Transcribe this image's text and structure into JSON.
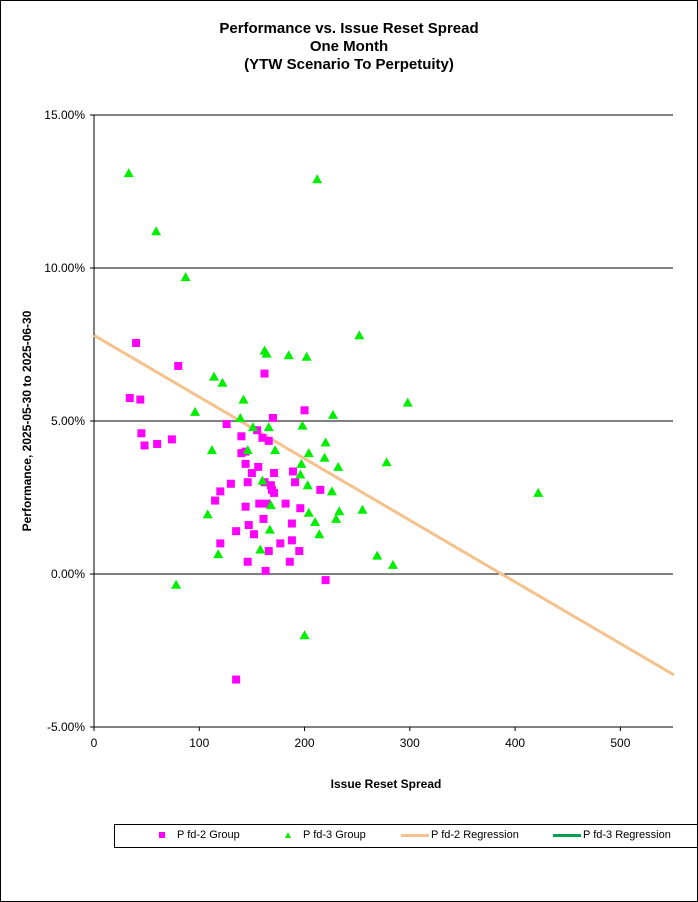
{
  "chart_data": {
    "type": "scatter",
    "title": [
      "Performance vs. Issue Reset Spread",
      "One Month",
      "(YTW Scenario To Perpetuity)"
    ],
    "xlabel": "Issue Reset Spread",
    "ylabel": "Performance, 2025-05-30  to 2025-06-30",
    "xlim": [
      0,
      550
    ],
    "ylim": [
      -5,
      15
    ],
    "x_ticks": [
      "0",
      "100",
      "200",
      "300",
      "400",
      "500"
    ],
    "y_ticks": [
      "-5.00%",
      "0.00%",
      "5.00%",
      "10.00%",
      "15.00%"
    ],
    "grid": "horizontal major",
    "legend_position": "bottom",
    "colors": {
      "pfd2": "#FF00FF",
      "pfd3": "#00EE00",
      "pfd2_reg": "#F5C28E",
      "pfd3_reg": "#00A050"
    },
    "series": [
      {
        "name": "P fd-2 Group",
        "marker": "square",
        "points": [
          [
            34,
            5.75
          ],
          [
            40,
            7.55
          ],
          [
            45,
            4.6
          ],
          [
            44,
            5.7
          ],
          [
            48,
            4.2
          ],
          [
            60,
            4.25
          ],
          [
            74,
            4.4
          ],
          [
            80,
            6.8
          ],
          [
            115,
            2.4
          ],
          [
            120,
            2.7
          ],
          [
            120,
            1.0
          ],
          [
            126,
            4.9
          ],
          [
            130,
            2.95
          ],
          [
            135,
            1.4
          ],
          [
            140,
            4.5
          ],
          [
            140,
            3.95
          ],
          [
            144,
            4.0
          ],
          [
            144,
            3.6
          ],
          [
            146,
            3.0
          ],
          [
            144,
            2.2
          ],
          [
            146,
            0.4
          ],
          [
            147,
            1.6
          ],
          [
            150,
            3.3
          ],
          [
            152,
            1.3
          ],
          [
            155,
            4.7
          ],
          [
            156,
            3.5
          ],
          [
            157,
            2.3
          ],
          [
            160,
            4.45
          ],
          [
            161,
            1.8
          ],
          [
            162,
            6.55
          ],
          [
            162,
            3.0
          ],
          [
            163,
            0.1
          ],
          [
            164,
            2.3
          ],
          [
            166,
            4.35
          ],
          [
            166,
            0.75
          ],
          [
            168,
            2.9
          ],
          [
            169,
            2.75
          ],
          [
            170,
            5.1
          ],
          [
            171,
            3.3
          ],
          [
            171,
            2.65
          ],
          [
            177,
            1.0
          ],
          [
            182,
            2.3
          ],
          [
            186,
            0.4
          ],
          [
            188,
            1.1
          ],
          [
            188,
            1.65
          ],
          [
            189,
            3.35
          ],
          [
            191,
            3.0
          ],
          [
            195,
            0.75
          ],
          [
            196,
            2.15
          ],
          [
            200,
            5.35
          ],
          [
            215,
            2.75
          ],
          [
            220,
            -0.2
          ],
          [
            135,
            -3.45
          ]
        ]
      },
      {
        "name": "P fd-3 Group",
        "marker": "triangle",
        "points": [
          [
            33,
            13.1
          ],
          [
            59,
            11.2
          ],
          [
            87,
            9.7
          ],
          [
            96,
            5.3
          ],
          [
            108,
            1.95
          ],
          [
            112,
            4.05
          ],
          [
            114,
            6.45
          ],
          [
            118,
            0.65
          ],
          [
            122,
            6.25
          ],
          [
            78,
            -0.35
          ],
          [
            139,
            5.1
          ],
          [
            142,
            5.7
          ],
          [
            146,
            4.05
          ],
          [
            151,
            4.8
          ],
          [
            160,
            3.05
          ],
          [
            158,
            0.8
          ],
          [
            162,
            7.3
          ],
          [
            164,
            7.2
          ],
          [
            166,
            4.8
          ],
          [
            167,
            1.45
          ],
          [
            168,
            2.25
          ],
          [
            172,
            4.05
          ],
          [
            185,
            7.15
          ],
          [
            197,
            3.6
          ],
          [
            196,
            3.25
          ],
          [
            198,
            4.85
          ],
          [
            200,
            -2.0
          ],
          [
            202,
            7.1
          ],
          [
            203,
            2.9
          ],
          [
            204,
            2.0
          ],
          [
            204,
            3.95
          ],
          [
            210,
            1.7
          ],
          [
            214,
            1.3
          ],
          [
            219,
            3.8
          ],
          [
            220,
            4.3
          ],
          [
            226,
            2.7
          ],
          [
            227,
            5.2
          ],
          [
            230,
            1.8
          ],
          [
            232,
            3.5
          ],
          [
            233,
            2.05
          ],
          [
            255,
            2.1
          ],
          [
            252,
            7.8
          ],
          [
            269,
            0.6
          ],
          [
            278,
            3.65
          ],
          [
            284,
            0.3
          ],
          [
            298,
            5.6
          ],
          [
            212,
            12.9
          ],
          [
            422,
            2.65
          ]
        ]
      },
      {
        "name": "P fd-2 Regression",
        "type": "line",
        "points": [
          [
            0,
            7.8
          ],
          [
            551,
            -3.3
          ]
        ]
      },
      {
        "name": "P fd-3 Regression",
        "type": "line",
        "points": []
      }
    ]
  },
  "legend": {
    "pfd2_group": "P fd-2 Group",
    "pfd3_group": "P fd-3 Group",
    "pfd2_reg": "P fd-2 Regression",
    "pfd3_reg": "P fd-3 Regression"
  }
}
